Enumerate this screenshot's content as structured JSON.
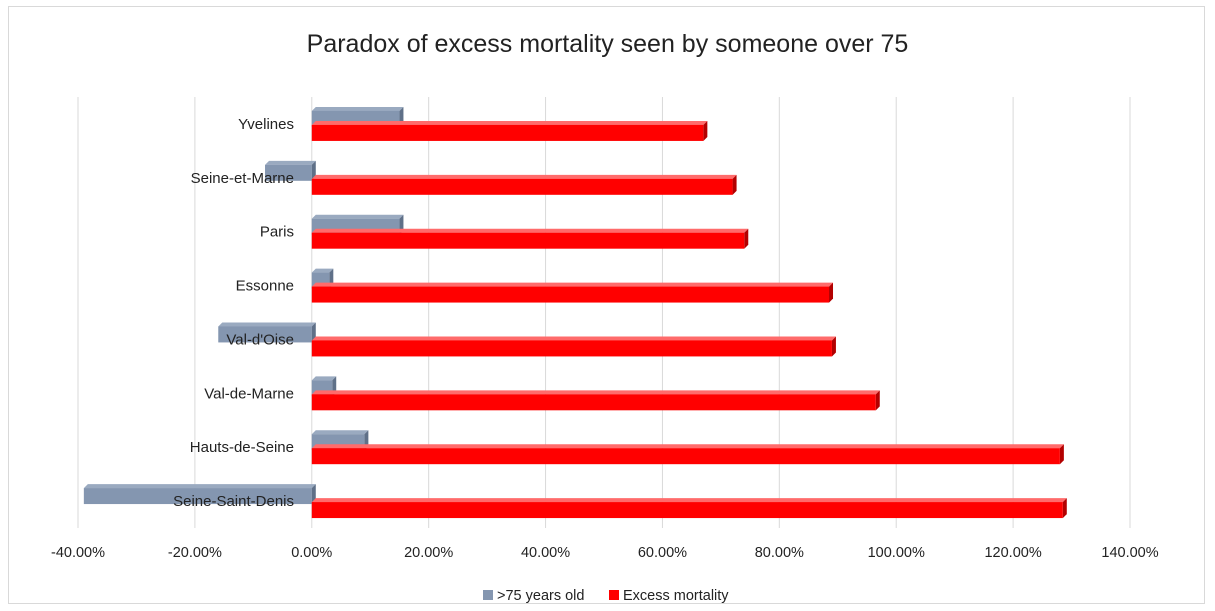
{
  "chart_data": {
    "type": "bar",
    "orientation": "horizontal",
    "title": "Paradox of excess mortality seen by someone over 75",
    "categories": [
      "Yvelines",
      "Seine-et-Marne",
      "Paris",
      "Essonne",
      "Val-d'Oise",
      "Val-de-Marne",
      "Hauts-de-Seine",
      "Seine-Saint-Denis"
    ],
    "series": [
      {
        "name": ">75 years old",
        "color": "#8496b0",
        "values": [
          0.15,
          -0.08,
          0.15,
          0.03,
          -0.16,
          0.035,
          0.09,
          -0.39
        ]
      },
      {
        "name": "Excess mortality",
        "color": "#ff0000",
        "values": [
          0.67,
          0.72,
          0.74,
          0.885,
          0.89,
          0.965,
          1.28,
          1.285
        ]
      }
    ],
    "xlim": [
      -0.4,
      1.4
    ],
    "x_ticks": [
      -0.4,
      -0.2,
      0,
      0.2,
      0.4,
      0.6,
      0.8,
      1.0,
      1.2,
      1.4
    ],
    "x_tick_labels": [
      "-40.00%",
      "-20.00%",
      "0.00%",
      "20.00%",
      "40.00%",
      "60.00%",
      "80.00%",
      "100.00%",
      "120.00%",
      "140.00%"
    ],
    "grid": true,
    "legend_position": "bottom"
  }
}
